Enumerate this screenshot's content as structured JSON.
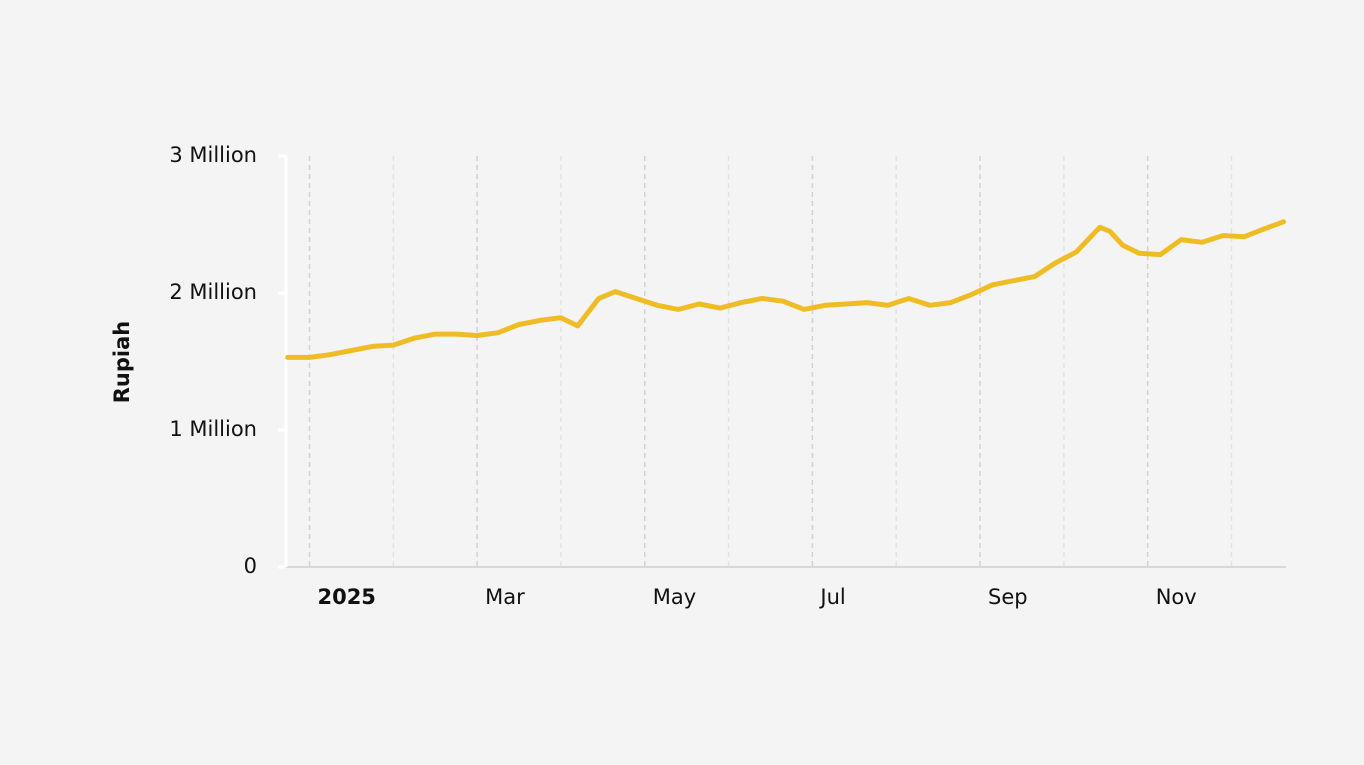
{
  "chart_data": {
    "type": "line",
    "y_label": "Rupiah",
    "x": [
      0.74,
      1.0,
      1.25,
      1.5,
      1.75,
      2.0,
      2.25,
      2.5,
      2.75,
      3.0,
      3.25,
      3.5,
      3.75,
      4.0,
      4.2,
      4.45,
      4.65,
      4.9,
      5.15,
      5.4,
      5.65,
      5.9,
      6.15,
      6.4,
      6.65,
      6.9,
      7.15,
      7.4,
      7.65,
      7.9,
      8.15,
      8.4,
      8.65,
      8.9,
      9.15,
      9.4,
      9.65,
      9.9,
      10.15,
      10.43,
      10.55,
      10.7,
      10.9,
      11.15,
      11.4,
      11.65,
      11.9,
      12.15,
      12.4,
      12.62
    ],
    "series": [
      {
        "color": "#f0bc26",
        "values": [
          1530000,
          1530000,
          1550000,
          1580000,
          1610000,
          1620000,
          1670000,
          1700000,
          1700000,
          1690000,
          1710000,
          1770000,
          1800000,
          1820000,
          1760000,
          1960000,
          2010000,
          1960000,
          1910000,
          1880000,
          1920000,
          1890000,
          1930000,
          1960000,
          1940000,
          1880000,
          1910000,
          1920000,
          1930000,
          1910000,
          1960000,
          1910000,
          1930000,
          1990000,
          2060000,
          2090000,
          2120000,
          2220000,
          2300000,
          2480000,
          2450000,
          2350000,
          2290000,
          2280000,
          2390000,
          2370000,
          2420000,
          2410000,
          2470000,
          2520000
        ]
      }
    ],
    "xlim": [
      0.72,
      12.65
    ],
    "xticks": [
      {
        "value": 1,
        "label": "2025"
      },
      {
        "value": 3,
        "label": "Mar"
      },
      {
        "value": 5,
        "label": "May"
      },
      {
        "value": 7,
        "label": "Jul"
      },
      {
        "value": 9,
        "label": "Sep"
      },
      {
        "value": 11,
        "label": "Nov"
      }
    ],
    "xminorticks": [
      2,
      4,
      6,
      8,
      10,
      12
    ],
    "ylim": [
      0,
      3000000
    ],
    "yticks": [
      0,
      {
        "value": 1000000,
        "label": "1 Million"
      },
      {
        "value": 2000000,
        "label": "2 Million"
      },
      {
        "value": 3000000,
        "label": "3 Million"
      }
    ]
  }
}
